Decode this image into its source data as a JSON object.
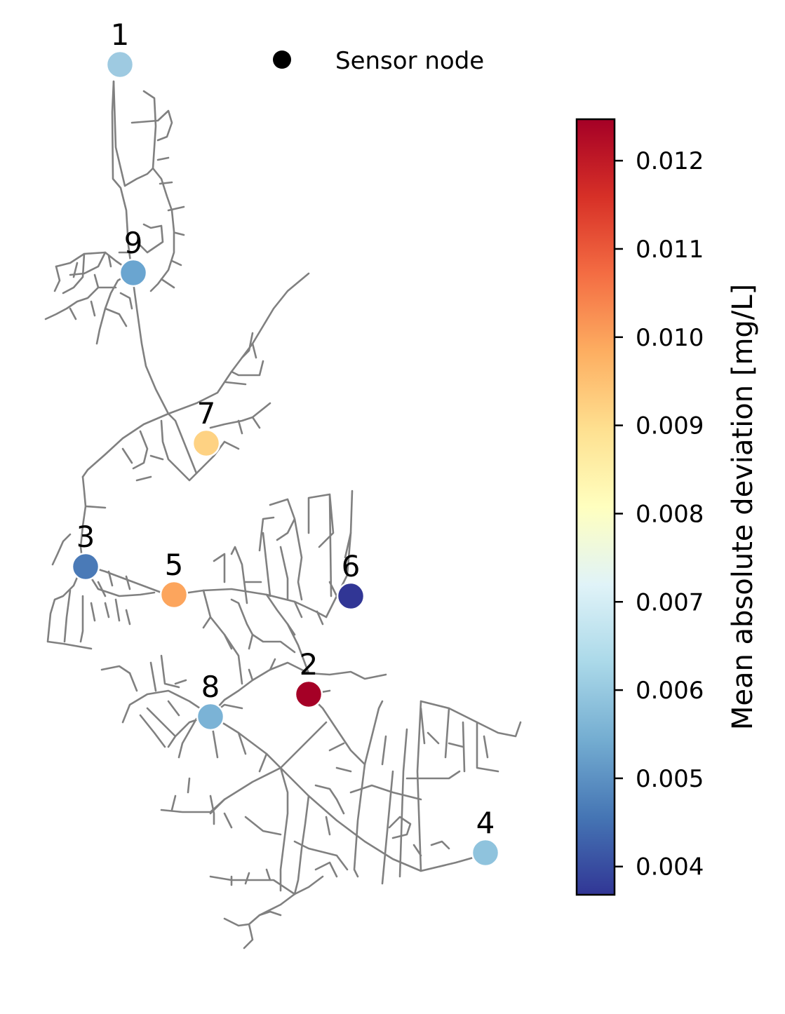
{
  "legend": {
    "label": "Sensor node",
    "marker_color": "#000000"
  },
  "colorbar": {
    "title": "Mean absolute deviation [mg/L]",
    "range": [
      0.00368,
      0.01247
    ],
    "ticks": [
      {
        "value": 0.004,
        "label": "0.004"
      },
      {
        "value": 0.005,
        "label": "0.005"
      },
      {
        "value": 0.006,
        "label": "0.006"
      },
      {
        "value": 0.007,
        "label": "0.007"
      },
      {
        "value": 0.008,
        "label": "0.008"
      },
      {
        "value": 0.009,
        "label": "0.009"
      },
      {
        "value": 0.01,
        "label": "0.010"
      },
      {
        "value": 0.011,
        "label": "0.011"
      },
      {
        "value": 0.012,
        "label": "0.012"
      }
    ],
    "colormap": "RdYlBu_r",
    "stops": [
      "#313695",
      "#4575b4",
      "#74add1",
      "#abd9e9",
      "#e0f3f8",
      "#ffffbf",
      "#fee090",
      "#fdae61",
      "#f46d43",
      "#d73027",
      "#a50026"
    ]
  },
  "network": {
    "pipe_color": "#808080"
  },
  "sensors": [
    {
      "id": "1",
      "value": 0.0062,
      "color": "#9ecae1"
    },
    {
      "id": "2",
      "value": 0.0124,
      "color": "#a50026"
    },
    {
      "id": "3",
      "value": 0.0049,
      "color": "#4a7ab7"
    },
    {
      "id": "4",
      "value": 0.0061,
      "color": "#8fc3dd"
    },
    {
      "id": "5",
      "value": 0.0101,
      "color": "#fca55d"
    },
    {
      "id": "6",
      "value": 0.0037,
      "color": "#313695"
    },
    {
      "id": "7",
      "value": 0.0093,
      "color": "#fed283"
    },
    {
      "id": "8",
      "value": 0.0056,
      "color": "#7bb3d6"
    },
    {
      "id": "9",
      "value": 0.0054,
      "color": "#6aa5d0"
    }
  ]
}
